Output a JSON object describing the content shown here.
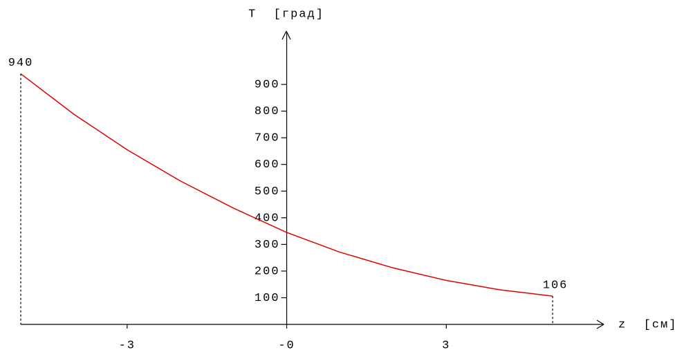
{
  "chart_data": {
    "type": "line",
    "xlabel": "z  [см]",
    "ylabel": "T  [град]",
    "x": [
      -5,
      -4,
      -3,
      -2,
      -1,
      0,
      1,
      2,
      3,
      4,
      5
    ],
    "series": [
      {
        "color": "#e00000",
        "values": [
          940,
          788,
          655,
          538,
          436,
          345,
          271,
          212,
          165,
          130,
          106
        ]
      }
    ],
    "xlim": [
      -5,
      6
    ],
    "ylim": [
      0,
      1100
    ],
    "xticks": [
      -3,
      {
        "value": 0,
        "label": "-0"
      },
      3
    ],
    "yticks": [
      100,
      200,
      300,
      400,
      500,
      600,
      700,
      800,
      900
    ]
  }
}
